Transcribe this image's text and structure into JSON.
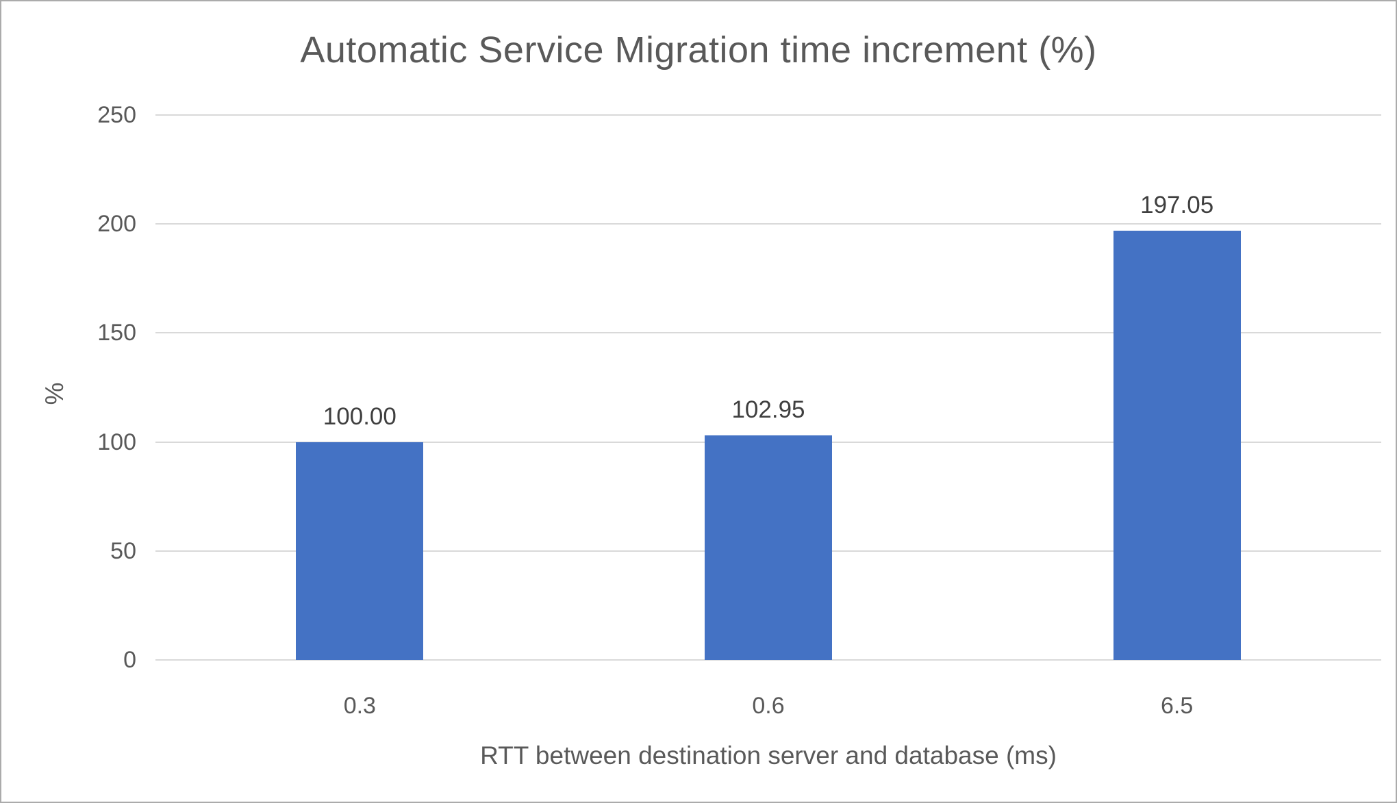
{
  "chart_data": {
    "type": "bar",
    "title": "Automatic Service Migration time increment (%)",
    "categories": [
      "0.3",
      "0.6",
      "6.5"
    ],
    "values": [
      100.0,
      102.95,
      197.05
    ],
    "data_labels": [
      "100.00",
      "102.95",
      "197.05"
    ],
    "xlabel": "RTT between destination server and database (ms)",
    "ylabel": "%",
    "ylim": [
      0,
      250
    ],
    "yticks": [
      0,
      50,
      100,
      150,
      200,
      250
    ],
    "grid": true,
    "legend": false,
    "bar_color": "#4472c4",
    "gridline_color": "#d9d9d9",
    "text_color": "#595959"
  }
}
